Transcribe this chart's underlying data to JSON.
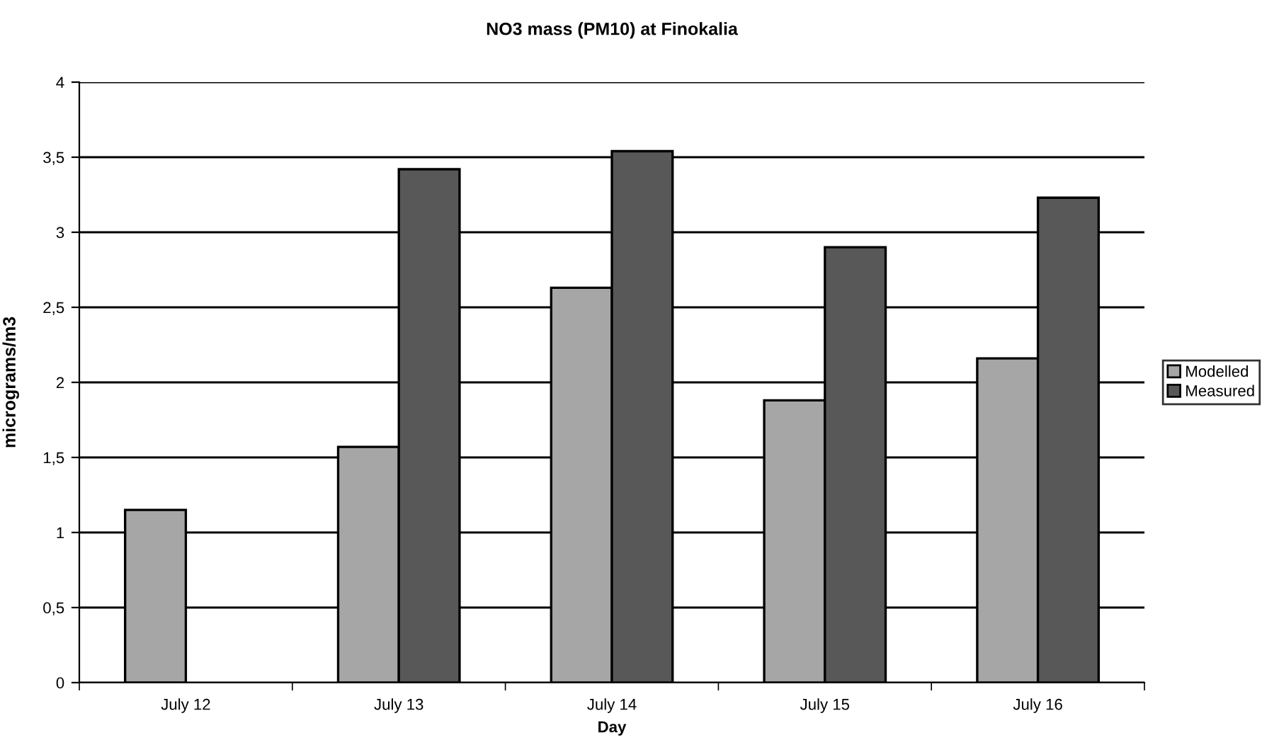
{
  "chart_data": {
    "type": "bar",
    "title": "NO3 mass (PM10) at Finokalia",
    "xlabel": "Day",
    "ylabel": "micrograms/m3",
    "categories": [
      "July 12",
      "July 13",
      "July 14",
      "July 15",
      "July 16"
    ],
    "series": [
      {
        "name": "Modelled",
        "color": "#a6a6a6",
        "values": [
          1.15,
          1.57,
          2.63,
          1.88,
          2.16
        ]
      },
      {
        "name": "Measured",
        "color": "#585858",
        "values": [
          null,
          3.42,
          3.54,
          2.9,
          3.23
        ]
      }
    ],
    "ylim": [
      0,
      4
    ],
    "yticks": [
      0,
      {
        "value": 0.5,
        "label": "0,5"
      },
      1,
      {
        "value": 1.5,
        "label": "1,5"
      },
      2,
      {
        "value": 2.5,
        "label": "2,5"
      },
      3,
      {
        "value": 3.5,
        "label": "3,5"
      },
      4
    ],
    "grid": "y",
    "legend": "right"
  }
}
